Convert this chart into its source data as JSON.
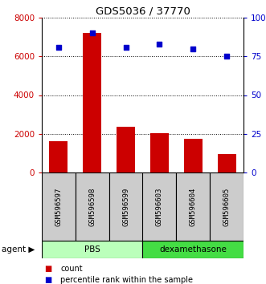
{
  "title": "GDS5036 / 37770",
  "samples": [
    "GSM596597",
    "GSM596598",
    "GSM596599",
    "GSM596603",
    "GSM596604",
    "GSM596605"
  ],
  "counts": [
    1600,
    7200,
    2350,
    2050,
    1750,
    950
  ],
  "percentiles": [
    81,
    90,
    81,
    83,
    80,
    75
  ],
  "bar_color": "#cc0000",
  "dot_color": "#0000cc",
  "ylim_left": [
    0,
    8000
  ],
  "ylim_right": [
    0,
    100
  ],
  "yticks_left": [
    0,
    2000,
    4000,
    6000,
    8000
  ],
  "yticks_right": [
    0,
    25,
    50,
    75,
    100
  ],
  "ytick_labels_right": [
    "0",
    "25",
    "50",
    "75",
    "100%"
  ],
  "groups": [
    {
      "label": "PBS",
      "indices": [
        0,
        1,
        2
      ],
      "color": "#bbffbb"
    },
    {
      "label": "dexamethasone",
      "indices": [
        3,
        4,
        5
      ],
      "color": "#44dd44"
    }
  ],
  "group_row_label": "agent",
  "legend_count_label": "count",
  "legend_pct_label": "percentile rank within the sample",
  "left_tick_color": "#cc0000",
  "right_tick_color": "#0000cc",
  "background_color": "#ffffff",
  "sample_box_color": "#cccccc"
}
